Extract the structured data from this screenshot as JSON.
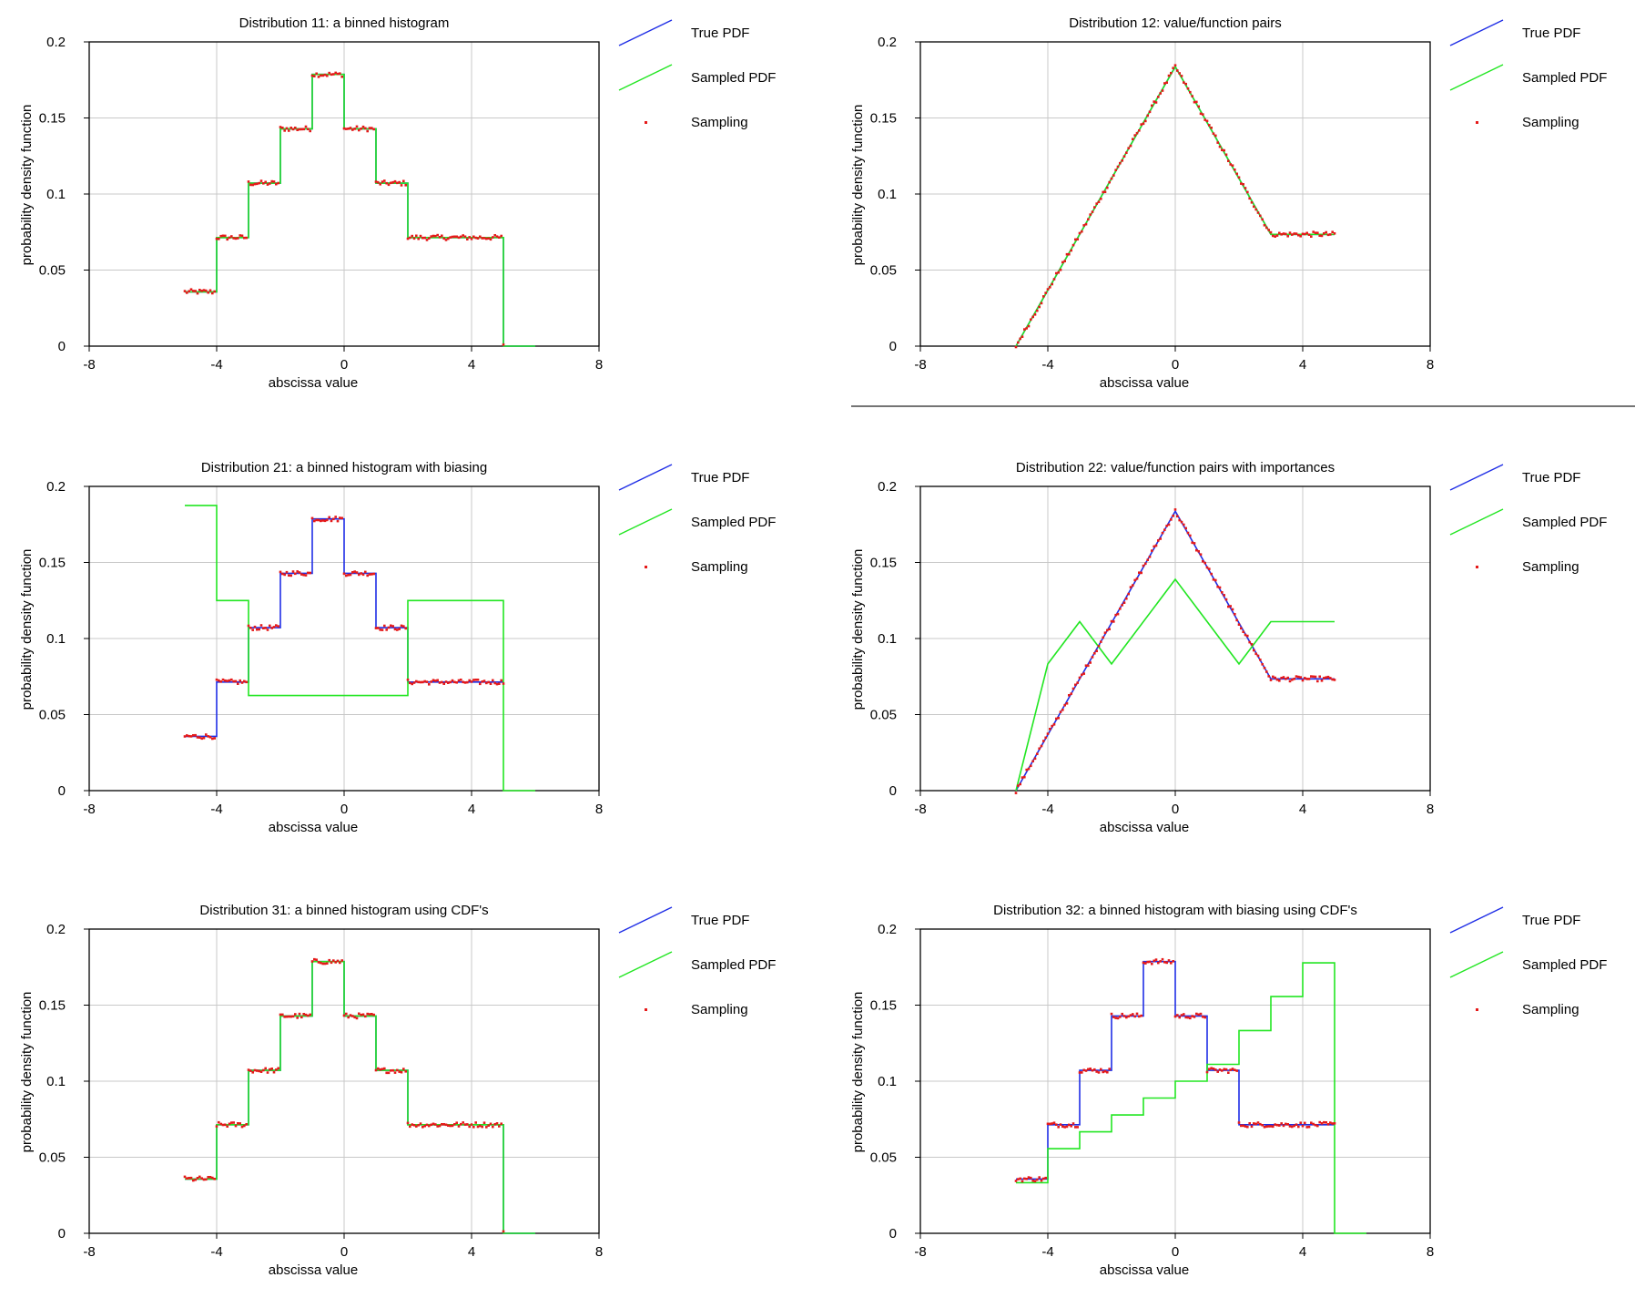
{
  "legend": {
    "true_pdf": "True PDF",
    "sampled_pdf": "Sampled PDF",
    "sampling": "Sampling"
  },
  "colors": {
    "true": "#1f2ee6",
    "sampled": "#22e622",
    "sampling": "#e51a1a",
    "grid": "#c8c8c8"
  },
  "chart_data": [
    {
      "type": "line",
      "title": "Distribution 11: a binned histogram",
      "xlabel": "abscissa value",
      "ylabel": "probability density function",
      "xlim": [
        -8,
        8
      ],
      "ylim": [
        0,
        0.2
      ],
      "xticks": [
        "-8",
        "-4",
        "0",
        "4",
        "8"
      ],
      "yticks": [
        "0",
        "0.05",
        "0.1",
        "0.15",
        "0.2"
      ],
      "series": [
        {
          "name": "True PDF",
          "kind": "step",
          "edges": [
            -5,
            -4,
            -3,
            -2,
            -1,
            0,
            1,
            2,
            3,
            4,
            5,
            6
          ],
          "values": [
            0.0357,
            0.0714,
            0.1071,
            0.1429,
            0.1786,
            0.1429,
            0.1071,
            0.0714,
            0.0714,
            0.0714,
            0
          ]
        },
        {
          "name": "Sampled PDF",
          "kind": "step",
          "edges": [
            -5,
            -4,
            -3,
            -2,
            -1,
            0,
            1,
            2,
            3,
            4,
            5,
            6
          ],
          "values": [
            0.0357,
            0.0714,
            0.1071,
            0.1429,
            0.1786,
            0.1429,
            0.1071,
            0.0714,
            0.0714,
            0.0714,
            0
          ]
        },
        {
          "name": "Sampling",
          "kind": "points",
          "x": [
            -5,
            5
          ],
          "source": "True PDF"
        }
      ]
    },
    {
      "type": "line",
      "title": "Distribution 12: value/function pairs",
      "xlabel": "abscissa value",
      "ylabel": "probability density function",
      "xlim": [
        -8,
        8
      ],
      "ylim": [
        0,
        0.2
      ],
      "xticks": [
        "-8",
        "-4",
        "0",
        "4",
        "8"
      ],
      "yticks": [
        "0",
        "0.05",
        "0.1",
        "0.15",
        "0.2"
      ],
      "series": [
        {
          "name": "True PDF",
          "kind": "line",
          "x": [
            -5,
            0,
            3,
            5
          ],
          "y": [
            0,
            0.1837,
            0.0735,
            0.0735
          ]
        },
        {
          "name": "Sampled PDF",
          "kind": "line",
          "x": [
            -5,
            0,
            3,
            5
          ],
          "y": [
            0,
            0.1837,
            0.0735,
            0.0735
          ]
        },
        {
          "name": "Sampling",
          "kind": "points",
          "x": [
            -5,
            5
          ],
          "source": "True PDF"
        }
      ]
    },
    {
      "type": "line",
      "title": "Distribution 21: a binned histogram with biasing",
      "xlabel": "abscissa value",
      "ylabel": "probability density function",
      "xlim": [
        -8,
        8
      ],
      "ylim": [
        0,
        0.2
      ],
      "xticks": [
        "-8",
        "-4",
        "0",
        "4",
        "8"
      ],
      "yticks": [
        "0",
        "0.05",
        "0.1",
        "0.15",
        "0.2"
      ],
      "series": [
        {
          "name": "True PDF",
          "kind": "step",
          "edges": [
            -5,
            -4,
            -3,
            -2,
            -1,
            0,
            1,
            2,
            3,
            4,
            5
          ],
          "values": [
            0.0357,
            0.0714,
            0.1071,
            0.1429,
            0.1786,
            0.1429,
            0.1071,
            0.0714,
            0.0714,
            0.0714
          ]
        },
        {
          "name": "Sampled PDF",
          "kind": "step",
          "edges": [
            -5,
            -4,
            -3,
            2,
            5,
            6
          ],
          "values": [
            0.1875,
            0.125,
            0.0625,
            0.125,
            0
          ]
        },
        {
          "name": "Sampling",
          "kind": "points",
          "x": [
            -5,
            5
          ],
          "source": "True PDF"
        }
      ]
    },
    {
      "type": "line",
      "title": "Distribution 22: value/function pairs with importances",
      "xlabel": "abscissa value",
      "ylabel": "probability density function",
      "xlim": [
        -8,
        8
      ],
      "ylim": [
        0,
        0.2
      ],
      "xticks": [
        "-8",
        "-4",
        "0",
        "4",
        "8"
      ],
      "yticks": [
        "0",
        "0.05",
        "0.1",
        "0.15",
        "0.2"
      ],
      "series": [
        {
          "name": "True PDF",
          "kind": "line",
          "x": [
            -5,
            0,
            3,
            5
          ],
          "y": [
            0,
            0.1837,
            0.0735,
            0.0735
          ]
        },
        {
          "name": "Sampled PDF",
          "kind": "line",
          "x": [
            -5,
            -4,
            -3,
            -2,
            0,
            2,
            3,
            5
          ],
          "y": [
            0,
            0.0833,
            0.1111,
            0.0833,
            0.1389,
            0.0833,
            0.1111,
            0.1111
          ]
        },
        {
          "name": "Sampling",
          "kind": "points",
          "x": [
            -5,
            5
          ],
          "source": "True PDF"
        }
      ]
    },
    {
      "type": "line",
      "title": "Distribution 31: a binned histogram using CDF's",
      "xlabel": "abscissa value",
      "ylabel": "probability density function",
      "xlim": [
        -8,
        8
      ],
      "ylim": [
        0,
        0.2
      ],
      "xticks": [
        "-8",
        "-4",
        "0",
        "4",
        "8"
      ],
      "yticks": [
        "0",
        "0.05",
        "0.1",
        "0.15",
        "0.2"
      ],
      "series": [
        {
          "name": "True PDF",
          "kind": "step",
          "edges": [
            -5,
            -4,
            -3,
            -2,
            -1,
            0,
            1,
            2,
            3,
            4,
            5,
            6
          ],
          "values": [
            0.0357,
            0.0714,
            0.1071,
            0.1429,
            0.1786,
            0.1429,
            0.1071,
            0.0714,
            0.0714,
            0.0714,
            0
          ]
        },
        {
          "name": "Sampled PDF",
          "kind": "step",
          "edges": [
            -5,
            -4,
            -3,
            -2,
            -1,
            0,
            1,
            2,
            3,
            4,
            5,
            6
          ],
          "values": [
            0.0357,
            0.0714,
            0.1071,
            0.1429,
            0.1786,
            0.1429,
            0.1071,
            0.0714,
            0.0714,
            0.0714,
            0
          ]
        },
        {
          "name": "Sampling",
          "kind": "points",
          "x": [
            -5,
            5
          ],
          "source": "True PDF"
        }
      ]
    },
    {
      "type": "line",
      "title": "Distribution 32: a binned histogram with biasing using CDF's",
      "xlabel": "abscissa value",
      "ylabel": "probability density function",
      "xlim": [
        -8,
        8
      ],
      "ylim": [
        0,
        0.2
      ],
      "xticks": [
        "-8",
        "-4",
        "0",
        "4",
        "8"
      ],
      "yticks": [
        "0",
        "0.05",
        "0.1",
        "0.15",
        "0.2"
      ],
      "series": [
        {
          "name": "True PDF",
          "kind": "step",
          "edges": [
            -5,
            -4,
            -3,
            -2,
            -1,
            0,
            1,
            2,
            3,
            4,
            5
          ],
          "values": [
            0.0357,
            0.0714,
            0.1071,
            0.1429,
            0.1786,
            0.1429,
            0.1071,
            0.0714,
            0.0714,
            0.0714
          ]
        },
        {
          "name": "Sampled PDF",
          "kind": "step",
          "edges": [
            -5,
            -4,
            -3,
            -2,
            -1,
            0,
            1,
            2,
            3,
            4,
            5,
            6
          ],
          "values": [
            0.0333,
            0.0556,
            0.0667,
            0.0778,
            0.0889,
            0.1,
            0.1111,
            0.1333,
            0.1556,
            0.1778,
            0
          ]
        },
        {
          "name": "Sampling",
          "kind": "points",
          "x": [
            -5,
            5
          ],
          "source": "True PDF"
        }
      ]
    }
  ]
}
